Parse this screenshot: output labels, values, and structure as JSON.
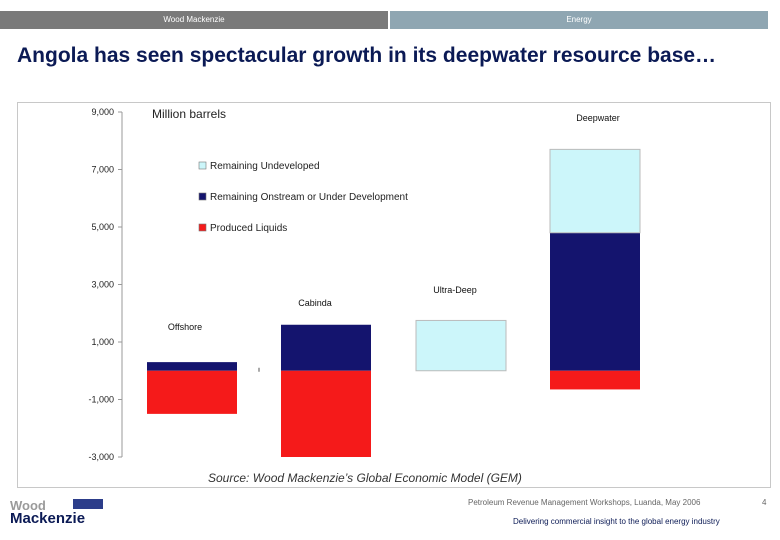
{
  "header": {
    "left": "Wood Mackenzie",
    "right": "Energy"
  },
  "title": "Angola has seen spectacular growth in its deepwater resource base…",
  "chart_data": {
    "type": "bar",
    "unit_label": "Million barrels",
    "ylim": [
      -3000,
      9000
    ],
    "yticks": [
      "9,000",
      "7,000",
      "5,000",
      "3,000",
      "1,000",
      "-1,000",
      "-3,000"
    ],
    "ytick_values": [
      9000,
      7000,
      5000,
      3000,
      1000,
      -1000,
      -3000
    ],
    "categories": [
      "Offshore",
      "Cabinda",
      "Ultra-Deep",
      "Deepwater"
    ],
    "series": [
      {
        "name": "Remaining Undeveloped",
        "color": "#ccf6fa",
        "values": [
          0,
          0,
          1750,
          2900
        ]
      },
      {
        "name": "Remaining Onstream or Under Development",
        "color": "#14146e",
        "values": [
          300,
          1600,
          0,
          4800
        ]
      },
      {
        "name": "Produced Liquids",
        "color": "#f51a1a",
        "values": [
          -1500,
          -3000,
          0,
          -650
        ]
      }
    ],
    "grid": false,
    "legend": "top-left"
  },
  "source": "Source: Wood Mackenzie’s Global Economic Model (GEM)",
  "footer": {
    "note": "Petroleum Revenue Management Workshops, Luanda, May 2006",
    "page": "4",
    "tagline": "Delivering commercial insight to the global energy industry",
    "logo_line1": "Wood",
    "logo_line2": "Mackenzie"
  }
}
